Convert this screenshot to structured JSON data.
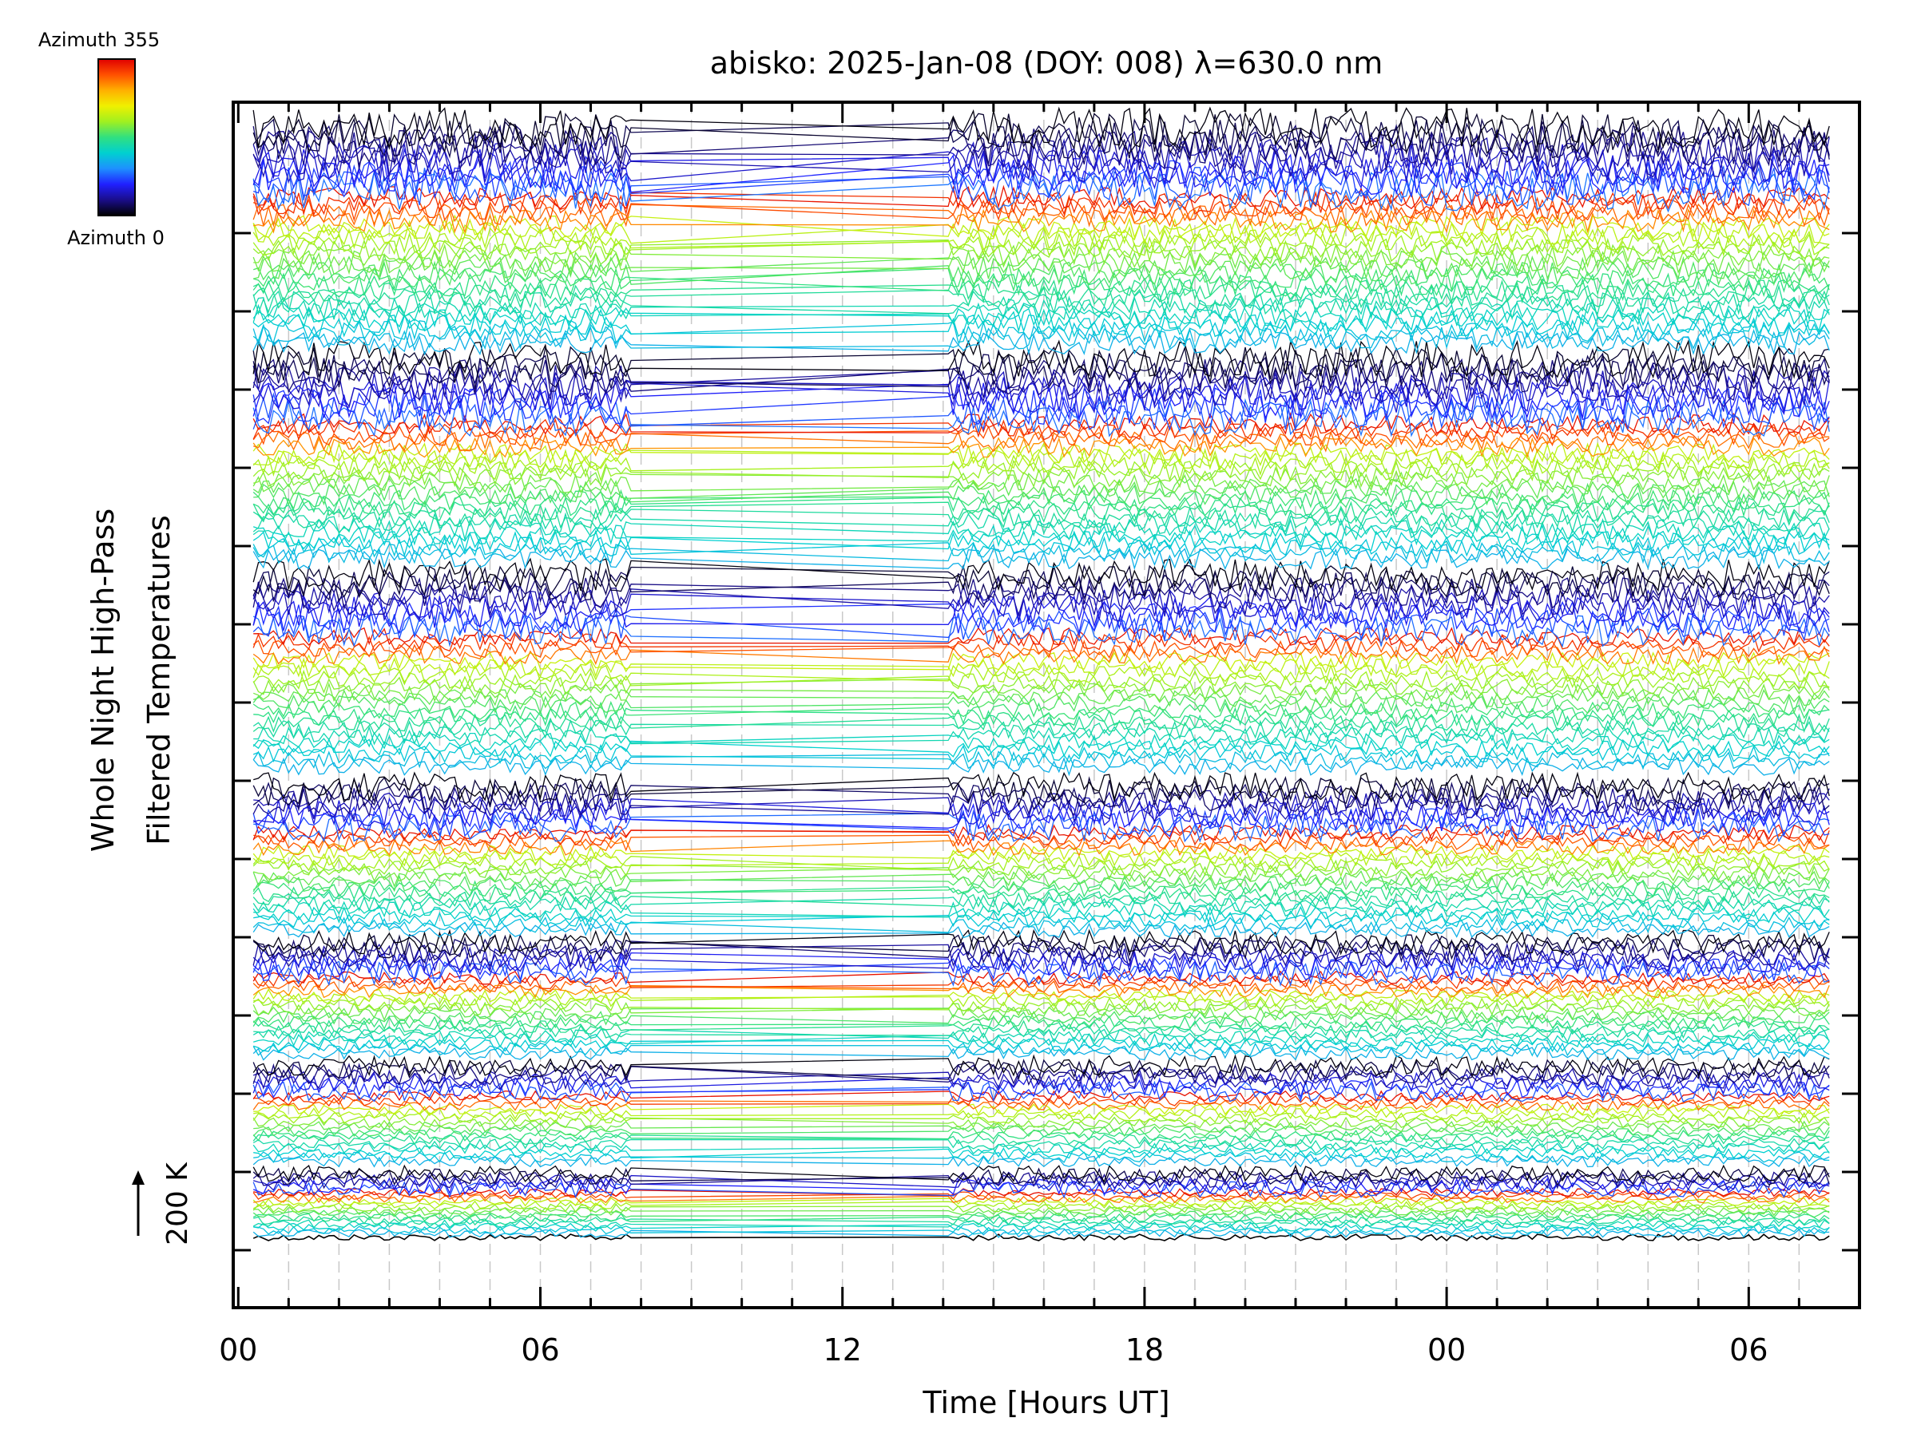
{
  "chart_data": {
    "type": "line",
    "title": "abisko: 2025-Jan-08 (DOY: 008) λ=630.0 nm",
    "xlabel": "Time [Hours UT]",
    "ylabel_line1": "Whole Night High-Pass",
    "ylabel_line2": "Filtered Temperatures",
    "scale_label": "200 K",
    "x_ticks": [
      {
        "hour": 0,
        "label": "00"
      },
      {
        "hour": 6,
        "label": "06"
      },
      {
        "hour": 12,
        "label": "12"
      },
      {
        "hour": 18,
        "label": "18"
      },
      {
        "hour": 24,
        "label": "00"
      },
      {
        "hour": 30,
        "label": "06"
      }
    ],
    "xlim": [
      -0.1,
      32.2
    ],
    "x_start_hour": 0.3,
    "x_end_hour": 31.6,
    "gap_hours": [
      7.8,
      14.1
    ],
    "colorbar": {
      "top_label": "Azimuth 355",
      "bottom_label": "Azimuth 0",
      "colors": [
        "#000000",
        "#1a0d8a",
        "#2020ff",
        "#1e90ff",
        "#00d0d0",
        "#30e080",
        "#a0f020",
        "#f0f000",
        "#ffb000",
        "#ff5000",
        "#e00000"
      ]
    },
    "groups": 7,
    "lines_per_group": 20
  }
}
